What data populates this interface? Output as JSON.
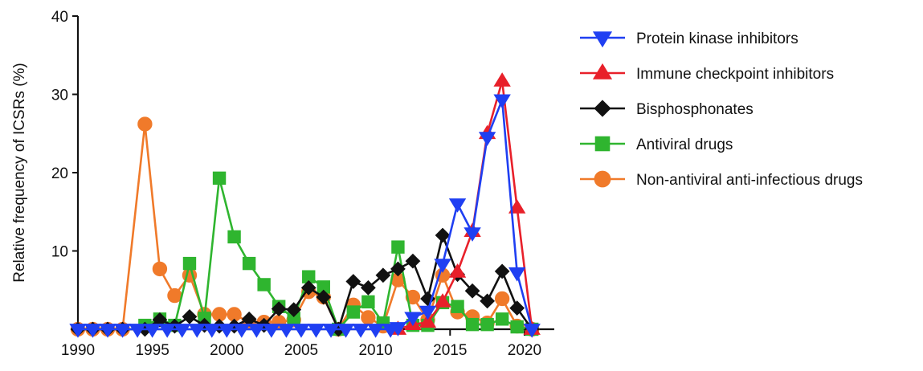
{
  "chart_data": {
    "type": "line",
    "title": "",
    "xlabel": "",
    "ylabel": "Relative frequency of ICSRs (%)",
    "xlim": [
      1990,
      2022
    ],
    "ylim": [
      0,
      40
    ],
    "xticks": [
      1990,
      1995,
      2000,
      2005,
      2010,
      2015,
      2020
    ],
    "yticks": [
      10,
      20,
      30,
      40
    ],
    "grid": false,
    "legend_position": "right",
    "series": [
      {
        "name": "Non-antiviral anti-infectious drugs",
        "color": "#f07a2a",
        "marker": "circle",
        "points": [
          [
            1990,
            0
          ],
          [
            1991,
            0
          ],
          [
            1992,
            0
          ],
          [
            1993,
            0
          ],
          [
            1994.5,
            26.2
          ],
          [
            1995.5,
            7.7
          ],
          [
            1996.5,
            4.3
          ],
          [
            1997.5,
            6.9
          ],
          [
            1998.5,
            1.9
          ],
          [
            1999.5,
            1.9
          ],
          [
            2000.5,
            1.9
          ],
          [
            2001.5,
            0.9
          ],
          [
            2002.5,
            0.9
          ],
          [
            2003.5,
            0.9
          ],
          [
            2004.5,
            1.2
          ],
          [
            2005.5,
            4.8
          ],
          [
            2006.5,
            4.1
          ],
          [
            2007.5,
            0
          ],
          [
            2008.5,
            3.1
          ],
          [
            2009.5,
            1.5
          ],
          [
            2010.5,
            0.4
          ],
          [
            2011.5,
            6.3
          ],
          [
            2012.5,
            4.1
          ],
          [
            2013.5,
            1.2
          ],
          [
            2014.5,
            6.9
          ],
          [
            2015.5,
            2.2
          ],
          [
            2016.5,
            1.6
          ],
          [
            2017.5,
            0.8
          ],
          [
            2018.5,
            3.9
          ],
          [
            2019.5,
            0.4
          ],
          [
            2020.5,
            0
          ]
        ]
      },
      {
        "name": "Antiviral drugs",
        "color": "#2fb52f",
        "marker": "square",
        "points": [
          [
            1994.5,
            0.5
          ],
          [
            1995.5,
            1.3
          ],
          [
            1996.5,
            0.5
          ],
          [
            1997.5,
            8.4
          ],
          [
            1998.5,
            1.4
          ],
          [
            1999.5,
            19.3
          ],
          [
            2000.5,
            11.8
          ],
          [
            2001.5,
            8.4
          ],
          [
            2002.5,
            5.7
          ],
          [
            2003.5,
            2.9
          ],
          [
            2004.5,
            1.4
          ],
          [
            2005.5,
            6.7
          ],
          [
            2006.5,
            5.4
          ],
          [
            2007.5,
            0
          ],
          [
            2008.5,
            2.2
          ],
          [
            2009.5,
            3.5
          ],
          [
            2010.5,
            0.8
          ],
          [
            2011.5,
            10.5
          ],
          [
            2012.5,
            0.5
          ],
          [
            2013.5,
            0.5
          ],
          [
            2014.5,
            3.4
          ],
          [
            2015.5,
            2.9
          ],
          [
            2016.5,
            0.6
          ],
          [
            2017.5,
            0.6
          ],
          [
            2018.5,
            1.3
          ],
          [
            2019.5,
            0.3
          ],
          [
            2020.5,
            0
          ]
        ]
      },
      {
        "name": "Bisphosphonates",
        "color": "#111111",
        "marker": "diamond",
        "points": [
          [
            1990,
            0
          ],
          [
            1991,
            0
          ],
          [
            1992,
            0
          ],
          [
            1993,
            0
          ],
          [
            1994.5,
            0
          ],
          [
            1995.5,
            1.2
          ],
          [
            1996.5,
            0.4
          ],
          [
            1997.5,
            1.6
          ],
          [
            1998.5,
            0.5
          ],
          [
            1999.5,
            0.4
          ],
          [
            2000.5,
            0.4
          ],
          [
            2001.5,
            1.3
          ],
          [
            2002.5,
            0.5
          ],
          [
            2003.5,
            2.6
          ],
          [
            2004.5,
            2.5
          ],
          [
            2005.5,
            5.3
          ],
          [
            2006.5,
            4.1
          ],
          [
            2007.5,
            0
          ],
          [
            2008.5,
            6.1
          ],
          [
            2009.5,
            5.3
          ],
          [
            2010.5,
            6.9
          ],
          [
            2011.5,
            7.7
          ],
          [
            2012.5,
            8.7
          ],
          [
            2013.5,
            3.9
          ],
          [
            2014.5,
            12.0
          ],
          [
            2015.5,
            7.0
          ],
          [
            2016.5,
            4.9
          ],
          [
            2017.5,
            3.6
          ],
          [
            2018.5,
            7.4
          ],
          [
            2019.5,
            2.7
          ],
          [
            2020.5,
            0
          ]
        ]
      },
      {
        "name": "Immune checkpoint inhibitors",
        "color": "#e8202a",
        "marker": "triangle-up",
        "points": [
          [
            2011.5,
            0
          ],
          [
            2012.5,
            0.6
          ],
          [
            2013.5,
            0.9
          ],
          [
            2014.5,
            3.5
          ],
          [
            2015.5,
            7.3
          ],
          [
            2016.5,
            12.5
          ],
          [
            2017.5,
            25.0
          ],
          [
            2018.5,
            31.7
          ],
          [
            2019.5,
            15.5
          ],
          [
            2020.5,
            0
          ]
        ]
      },
      {
        "name": "Protein kinase inhibitors",
        "color": "#1f3ff2",
        "marker": "triangle-down",
        "points": [
          [
            1990,
            0
          ],
          [
            1991,
            0
          ],
          [
            1992,
            0
          ],
          [
            1993,
            0
          ],
          [
            1994,
            0
          ],
          [
            1995,
            0
          ],
          [
            1996,
            0
          ],
          [
            1997,
            0
          ],
          [
            1998,
            0
          ],
          [
            1999,
            0
          ],
          [
            2000,
            0
          ],
          [
            2001,
            0
          ],
          [
            2002,
            0
          ],
          [
            2003,
            0
          ],
          [
            2004,
            0
          ],
          [
            2005,
            0
          ],
          [
            2006,
            0
          ],
          [
            2007,
            0
          ],
          [
            2008,
            0
          ],
          [
            2009,
            0
          ],
          [
            2010,
            0
          ],
          [
            2011,
            0
          ],
          [
            2011.5,
            0.2
          ],
          [
            2012.5,
            1.5
          ],
          [
            2013.5,
            2.3
          ],
          [
            2014.5,
            8.3
          ],
          [
            2015.5,
            16.0
          ],
          [
            2016.5,
            12.3
          ],
          [
            2017.5,
            24.5
          ],
          [
            2018.5,
            29.3
          ],
          [
            2019.5,
            7.2
          ],
          [
            2020.5,
            0
          ]
        ]
      }
    ],
    "legend_order": [
      "Protein kinase inhibitors",
      "Immune checkpoint inhibitors",
      "Bisphosphonates",
      "Antiviral drugs",
      "Non-antiviral anti-infectious drugs"
    ]
  }
}
